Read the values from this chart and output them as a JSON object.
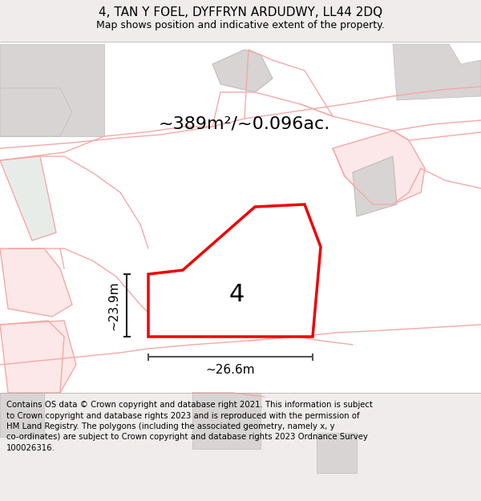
{
  "title": "4, TAN Y FOEL, DYFFRYN ARDUDWY, LL44 2DQ",
  "subtitle": "Map shows position and indicative extent of the property.",
  "area_text": "~389m²/~0.096ac.",
  "plot_number": "4",
  "width_label": "~26.6m",
  "height_label": "~23.9m",
  "footer_lines": [
    "Contains OS data © Crown copyright and database right 2021. This information is subject",
    "to Crown copyright and database rights 2023 and is reproduced with the permission of",
    "HM Land Registry. The polygons (including the associated geometry, namely x, y",
    "co-ordinates) are subject to Crown copyright and database rights 2023 Ordnance Survey",
    "100026316."
  ],
  "bg_color": "#f0ecec",
  "map_bg_color": "#ffffff",
  "plot_edge": "#ee0000",
  "pink": "#f5a8a8",
  "pink_fill": "#fce8e8",
  "gray_fill": "#d8d4d4",
  "gray_edge": "#c0bcbc",
  "green_fill": "#e8ece8",
  "dim_color": "#222222",
  "title_color": "#000000"
}
